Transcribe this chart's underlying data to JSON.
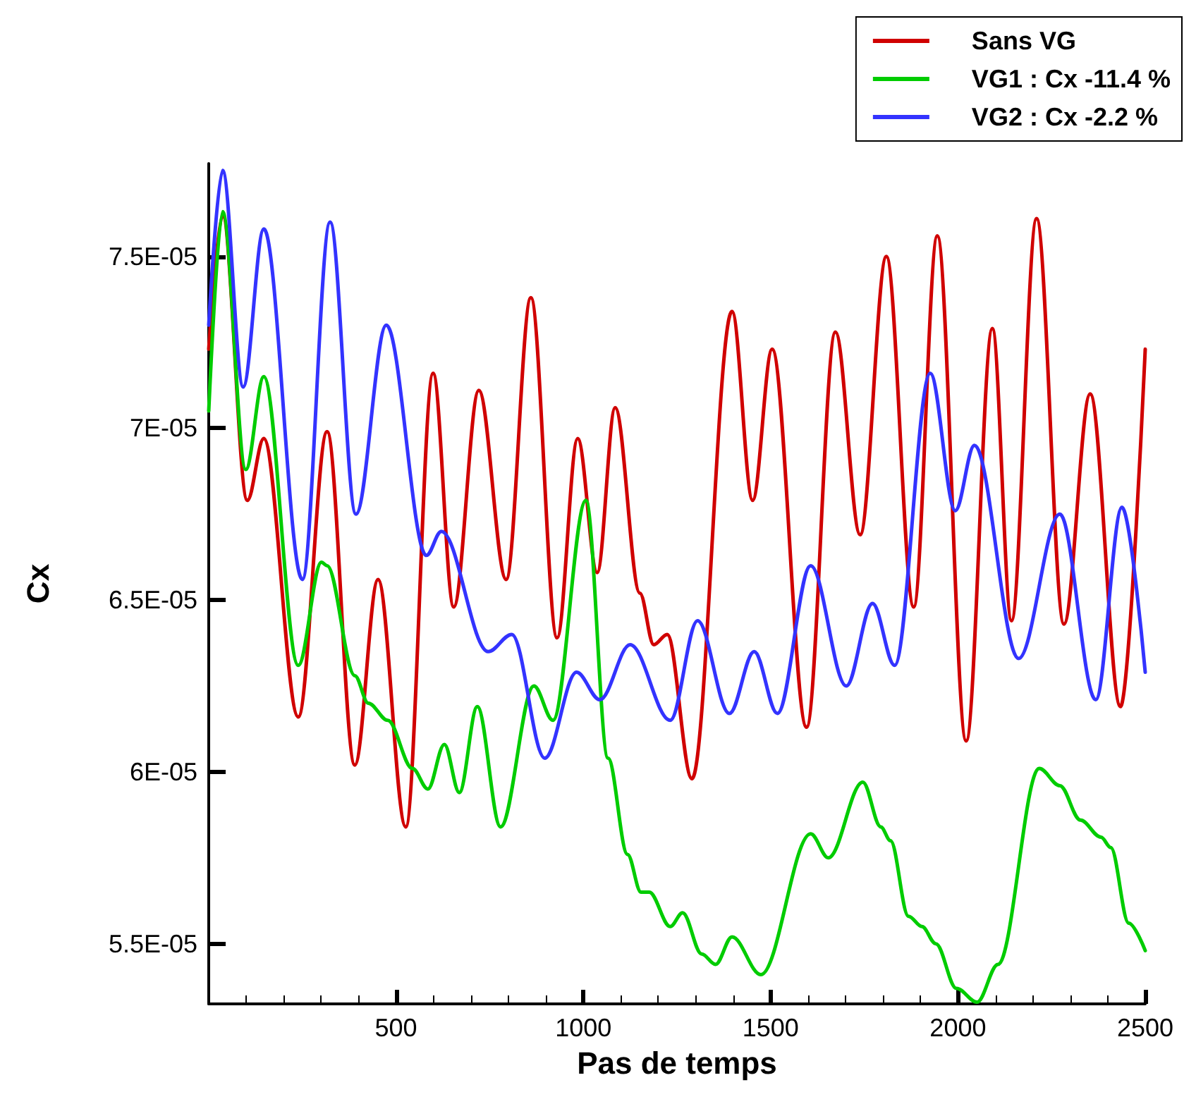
{
  "chart_data": {
    "type": "line",
    "xlabel": "Pas de temps",
    "ylabel": "Cx",
    "xlim": [
      0,
      2500
    ],
    "xticks": [
      500,
      1000,
      1500,
      2000,
      2500
    ],
    "ylim": [
      5.325e-05,
      7.77e-05
    ],
    "yticks": [
      {
        "value": 5.5e-05,
        "label": "5.5E-05"
      },
      {
        "value": 6e-05,
        "label": "6E-05"
      },
      {
        "value": 6.5e-05,
        "label": "6.5E-05"
      },
      {
        "value": 7e-05,
        "label": "7E-05"
      },
      {
        "value": 7.5e-05,
        "label": "7.5E-05"
      }
    ],
    "grid": false,
    "legend": "top right",
    "marker": "none",
    "line_style": "solid",
    "series": [
      {
        "name": "Sans VG",
        "color": "#d00000",
        "x": [
          0,
          37,
          103,
          147,
          239,
          316,
          390,
          452,
          526,
          599,
          654,
          721,
          794,
          860,
          930,
          985,
          1037,
          1085,
          1151,
          1188,
          1224,
          1290,
          1397,
          1452,
          1504,
          1596,
          1673,
          1739,
          1809,
          1882,
          1945,
          2022,
          2092,
          2143,
          2210,
          2283,
          2353,
          2434,
          2500
        ],
        "values": [
          7.23e-05,
          7.62e-05,
          6.79e-05,
          6.97e-05,
          6.16e-05,
          6.99e-05,
          6.02e-05,
          6.56e-05,
          5.84e-05,
          7.16e-05,
          6.48e-05,
          7.11e-05,
          6.56e-05,
          7.38e-05,
          6.39e-05,
          6.97e-05,
          6.58e-05,
          7.06e-05,
          6.52e-05,
          6.37e-05,
          6.4e-05,
          5.98e-05,
          7.34e-05,
          6.79e-05,
          7.23e-05,
          6.13e-05,
          7.28e-05,
          6.69e-05,
          7.5e-05,
          6.48e-05,
          7.56e-05,
          6.09e-05,
          7.29e-05,
          6.44e-05,
          7.61e-05,
          6.43e-05,
          7.1e-05,
          6.19e-05,
          7.23e-05
        ]
      },
      {
        "name": "VG1 : Cx -11.4 %",
        "color": "#00cc00",
        "x": [
          0,
          37,
          99,
          147,
          239,
          301,
          316,
          390,
          426,
          478,
          544,
          585,
          629,
          669,
          717,
          779,
          868,
          919,
          1007,
          1066,
          1118,
          1154,
          1176,
          1232,
          1265,
          1316,
          1353,
          1397,
          1474,
          1607,
          1654,
          1746,
          1794,
          1820,
          1868,
          1904,
          1941,
          1996,
          2051,
          2107,
          2217,
          2272,
          2327,
          2382,
          2408,
          2456,
          2500
        ],
        "values": [
          7.05e-05,
          7.63e-05,
          6.88e-05,
          7.15e-05,
          6.31e-05,
          6.61e-05,
          6.6e-05,
          6.28e-05,
          6.2e-05,
          6.15e-05,
          6.01e-05,
          5.95e-05,
          6.08e-05,
          5.94e-05,
          6.19e-05,
          5.84e-05,
          6.25e-05,
          6.15e-05,
          6.79e-05,
          6.04e-05,
          5.76e-05,
          5.65e-05,
          5.65e-05,
          5.55e-05,
          5.59e-05,
          5.47e-05,
          5.44e-05,
          5.52e-05,
          5.41e-05,
          5.82e-05,
          5.75e-05,
          5.97e-05,
          5.84e-05,
          5.8e-05,
          5.58e-05,
          5.55e-05,
          5.5e-05,
          5.37e-05,
          5.33e-05,
          5.44e-05,
          6.01e-05,
          5.96e-05,
          5.86e-05,
          5.81e-05,
          5.78e-05,
          5.56e-05,
          5.48e-05
        ]
      },
      {
        "name": "VG2 : Cx -2.2 %",
        "color": "#3333ff",
        "x": [
          0,
          37,
          92,
          147,
          250,
          324,
          393,
          474,
          581,
          621,
          746,
          809,
          897,
          982,
          1044,
          1125,
          1232,
          1305,
          1390,
          1456,
          1518,
          1607,
          1702,
          1772,
          1831,
          1926,
          1993,
          2044,
          2162,
          2272,
          2368,
          2438,
          2500
        ],
        "values": [
          7.3e-05,
          7.75e-05,
          7.12e-05,
          7.58e-05,
          6.56e-05,
          7.6e-05,
          6.75e-05,
          7.3e-05,
          6.63e-05,
          6.7e-05,
          6.35e-05,
          6.4e-05,
          6.04e-05,
          6.29e-05,
          6.21e-05,
          6.37e-05,
          6.15e-05,
          6.44e-05,
          6.17e-05,
          6.35e-05,
          6.17e-05,
          6.6e-05,
          6.25e-05,
          6.49e-05,
          6.31e-05,
          7.16e-05,
          6.76e-05,
          6.95e-05,
          6.33e-05,
          6.75e-05,
          6.21e-05,
          6.77e-05,
          6.29e-05
        ]
      }
    ]
  }
}
